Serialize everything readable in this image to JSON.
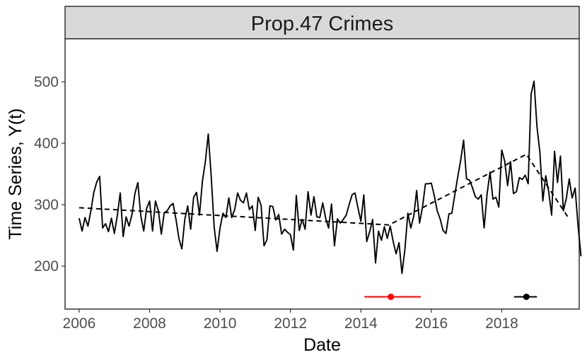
{
  "chart_data": {
    "type": "line",
    "facet_title": "Prop.47 Crimes",
    "title": "",
    "xlabel": "Date",
    "ylabel": "Time Series, Y(t)",
    "xlim": [
      2005.6,
      2020.2
    ],
    "ylim": [
      130,
      570
    ],
    "x_ticks": [
      2006,
      2008,
      2010,
      2012,
      2014,
      2016,
      2018
    ],
    "x_tick_labels": [
      "2006",
      "2008",
      "2010",
      "2012",
      "2014",
      "2016",
      "2018"
    ],
    "y_ticks": [
      200,
      300,
      400,
      500
    ],
    "y_tick_labels": [
      "200",
      "300",
      "400",
      "500"
    ],
    "grid": false,
    "legend": "none",
    "series": [
      {
        "style": "solid",
        "color": "#000000",
        "x_start": 2006.0,
        "x_step": 0.0833333,
        "values": [
          278,
          257,
          279,
          265,
          290,
          320,
          337,
          346,
          262,
          269,
          256,
          278,
          253,
          282,
          319,
          248,
          280,
          265,
          284,
          318,
          336,
          282,
          257,
          294,
          306,
          257,
          306,
          290,
          252,
          287,
          290,
          298,
          302,
          276,
          245,
          228,
          276,
          298,
          260,
          312,
          320,
          283,
          338,
          370,
          415,
          346,
          264,
          224,
          262,
          286,
          279,
          311,
          279,
          292,
          319,
          307,
          303,
          319,
          292,
          298,
          258,
          312,
          299,
          233,
          243,
          298,
          297,
          275,
          284,
          252,
          260,
          255,
          251,
          226,
          315,
          258,
          276,
          260,
          321,
          283,
          313,
          280,
          279,
          303,
          278,
          262,
          301,
          233,
          277,
          270,
          276,
          283,
          300,
          316,
          319,
          295,
          273,
          316,
          240,
          256,
          276,
          205,
          257,
          242,
          264,
          245,
          265,
          240,
          220,
          238,
          188,
          227,
          286,
          262,
          281,
          323,
          270,
          296,
          334,
          334,
          335,
          315,
          290,
          277,
          258,
          253,
          285,
          286,
          316,
          345,
          372,
          405,
          342,
          340,
          328,
          313,
          309,
          316,
          262,
          317,
          353,
          309,
          312,
          296,
          389,
          371,
          331,
          370,
          318,
          321,
          344,
          341,
          348,
          334,
          480,
          501,
          427,
          385,
          306,
          347,
          321,
          283,
          387,
          336,
          379,
          290,
          310,
          342,
          311,
          327,
          266,
          216
        ]
      },
      {
        "style": "dashed",
        "color": "#000000",
        "x": [
          2006.0,
          2014.8,
          2018.7,
          2019.9
        ],
        "values": [
          295,
          267,
          382,
          278
        ]
      }
    ],
    "intervals": [
      {
        "color": "#ff0000",
        "point": 2014.85,
        "low": 2014.1,
        "high": 2015.7,
        "y": 150
      },
      {
        "color": "#000000",
        "point": 2018.7,
        "low": 2018.35,
        "high": 2019.0,
        "y": 150
      }
    ]
  }
}
